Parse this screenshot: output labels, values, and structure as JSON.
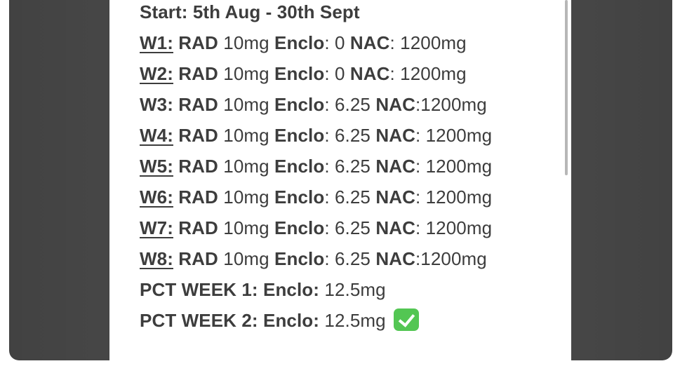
{
  "lines": [
    {
      "title": "Start: 5th Aug - 30th Sept"
    },
    {
      "label": "W1:",
      "rad": "RAD",
      "rad_v": " 10mg ",
      "enc": "Enclo",
      "enc_v": ": 0 ",
      "nac": "NAC",
      "nac_v": ": 1200mg"
    },
    {
      "label": "W2:",
      "rad": "RAD",
      "rad_v": " 10mg ",
      "enc": "Enclo",
      "enc_v": ": 0 ",
      "nac": "NAC",
      "nac_v": ": 1200mg"
    },
    {
      "label": "W3:",
      "rad": "RAD",
      "rad_v": " 10mg ",
      "enc": "Enclo",
      "enc_v": ": 6.25 ",
      "nac": "NAC",
      "nac_v": ":1200mg"
    },
    {
      "label": "W4:",
      "rad": "RAD",
      "rad_v": " 10mg ",
      "enc": "Enclo",
      "enc_v": ": 6.25 ",
      "nac": "NAC",
      "nac_v": ": 1200mg"
    },
    {
      "label": "W5:",
      "rad": "RAD",
      "rad_v": " 10mg ",
      "enc": "Enclo",
      "enc_v": ": 6.25 ",
      "nac": "NAC",
      "nac_v": ": 1200mg"
    },
    {
      "label": "W6:",
      "rad": "RAD",
      "rad_v": " 10mg ",
      "enc": "Enclo",
      "enc_v": ": 6.25 ",
      "nac": "NAC",
      "nac_v": ": 1200mg"
    },
    {
      "label": "W7:",
      "rad": "RAD",
      "rad_v": " 10mg ",
      "enc": "Enclo",
      "enc_v": ": 6.25 ",
      "nac": "NAC",
      "nac_v": ": 1200mg"
    },
    {
      "label": "W8:",
      "rad": "RAD",
      "rad_v": " 10mg ",
      "enc": "Enclo",
      "enc_v": ": 6.25 ",
      "nac": "NAC",
      "nac_v": ":1200mg"
    },
    {
      "label": "PCT WEEK 1:",
      "enc": "Enclo:",
      "enc_v": " 12.5mg"
    },
    {
      "label": "PCT WEEK 2:",
      "enc": "Enclo:",
      "enc_v": " 12.5mg"
    }
  ],
  "icons": {
    "done": "check-mark-button-icon"
  },
  "colors": {
    "frame": "#4b4b4b",
    "text": "#3d3d3d",
    "check": "#53c653"
  }
}
